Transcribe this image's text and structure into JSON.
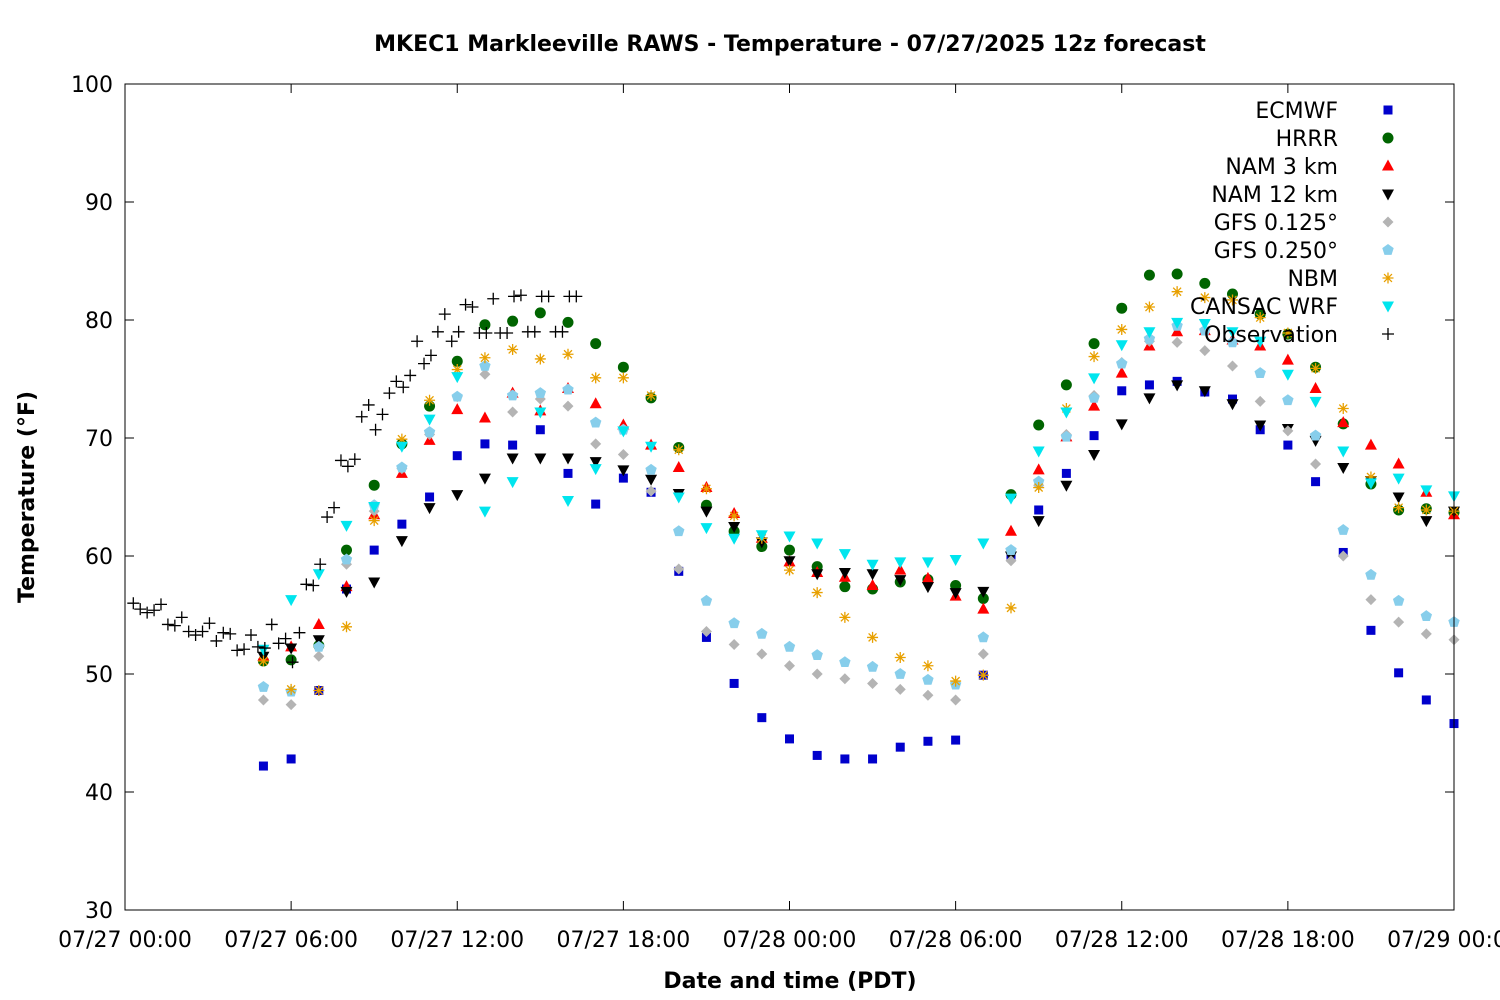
{
  "chart_data": {
    "type": "scatter",
    "title": "MKEC1 Markleeville RAWS - Temperature - 07/27/2025 12z forecast",
    "xlabel": "Date and time (PDT)",
    "ylabel": "Temperature (°F)",
    "xlim": [
      0,
      48
    ],
    "ylim": [
      30,
      100
    ],
    "yticks": [
      30,
      40,
      50,
      60,
      70,
      80,
      90,
      100
    ],
    "xticks": [
      {
        "x": 0,
        "label": "07/27 00:00"
      },
      {
        "x": 6,
        "label": "07/27 06:00"
      },
      {
        "x": 12,
        "label": "07/27 12:00"
      },
      {
        "x": 18,
        "label": "07/27 18:00"
      },
      {
        "x": 24,
        "label": "07/28 00:00"
      },
      {
        "x": 30,
        "label": "07/28 06:00"
      },
      {
        "x": 36,
        "label": "07/28 12:00"
      },
      {
        "x": 42,
        "label": "07/28 18:00"
      },
      {
        "x": 48,
        "label": "07/29 00:00"
      }
    ],
    "grid": false,
    "legend_position": "top-right",
    "series": [
      {
        "name": "ECMWF",
        "marker": "square",
        "color": "#0000cc",
        "x": [
          5,
          6,
          7,
          8,
          9,
          10,
          11,
          12,
          13,
          14,
          15,
          16,
          17,
          18,
          19,
          20,
          21,
          22,
          23,
          24,
          25,
          26,
          27,
          28,
          29,
          30,
          31,
          32,
          33,
          34,
          35,
          36,
          37,
          38,
          39,
          40,
          41,
          42,
          43,
          44,
          45,
          46,
          47,
          48
        ],
        "y": [
          42.2,
          42.8,
          48.6,
          57.2,
          60.5,
          62.7,
          65.0,
          68.5,
          69.5,
          69.4,
          70.7,
          67.0,
          64.4,
          66.6,
          65.4,
          58.7,
          53.1,
          49.2,
          46.3,
          44.5,
          43.1,
          42.8,
          42.8,
          43.8,
          44.3,
          44.4,
          49.9,
          60.0,
          63.9,
          67.0,
          70.2,
          74.0,
          74.5,
          74.8,
          73.9,
          73.3,
          70.7,
          69.4,
          66.3,
          60.3,
          53.7,
          50.1,
          47.8,
          45.8
        ]
      },
      {
        "name": "HRRR",
        "marker": "circle",
        "color": "#006400",
        "x": [
          5,
          6,
          7,
          8,
          9,
          10,
          11,
          12,
          13,
          14,
          15,
          16,
          17,
          18,
          19,
          20,
          21,
          22,
          23,
          24,
          25,
          26,
          27,
          28,
          29,
          30,
          31,
          32,
          33,
          34,
          35,
          36,
          37,
          38,
          39,
          40,
          41,
          42,
          43,
          44,
          45,
          46,
          47,
          48
        ],
        "y": [
          51.1,
          51.2,
          52.4,
          60.5,
          66.0,
          69.5,
          72.7,
          76.5,
          79.6,
          79.9,
          80.6,
          79.8,
          78.0,
          76.0,
          73.4,
          69.2,
          64.3,
          62.1,
          60.8,
          60.5,
          59.1,
          57.4,
          57.2,
          57.8,
          58.0,
          57.5,
          56.4,
          65.2,
          71.1,
          74.5,
          78.0,
          81.0,
          83.8,
          83.9,
          83.1,
          82.2,
          80.5,
          78.8,
          76.0,
          71.2,
          66.1,
          63.9,
          64.0,
          63.7
        ]
      },
      {
        "name": "NAM 3 km",
        "marker": "triangle-up",
        "color": "#ff0000",
        "x": [
          5,
          6,
          7,
          8,
          9,
          10,
          11,
          12,
          13,
          14,
          15,
          16,
          17,
          18,
          19,
          20,
          21,
          22,
          23,
          24,
          25,
          26,
          27,
          28,
          29,
          30,
          31,
          32,
          33,
          34,
          35,
          36,
          37,
          38,
          39,
          40,
          41,
          42,
          43,
          44,
          45,
          46,
          47,
          48
        ],
        "y": [
          51.5,
          52.3,
          54.2,
          57.4,
          63.5,
          67.0,
          69.8,
          72.4,
          71.7,
          73.8,
          72.3,
          74.2,
          72.9,
          71.1,
          69.4,
          67.5,
          65.8,
          63.6,
          61.5,
          59.5,
          58.6,
          58.2,
          57.5,
          58.8,
          58.1,
          56.6,
          55.5,
          62.1,
          67.3,
          70.1,
          72.7,
          75.5,
          77.8,
          79.0,
          79.1,
          78.3,
          77.8,
          76.6,
          74.2,
          71.3,
          69.4,
          67.8,
          65.4,
          63.5
        ]
      },
      {
        "name": "NAM 12 km",
        "marker": "triangle-down",
        "color": "#000000",
        "x": [
          5,
          6,
          7,
          8,
          9,
          10,
          11,
          12,
          13,
          14,
          15,
          16,
          17,
          18,
          19,
          20,
          21,
          22,
          23,
          24,
          25,
          26,
          27,
          28,
          29,
          30,
          31,
          32,
          33,
          34,
          35,
          36,
          37,
          38,
          39,
          40,
          41,
          42,
          43,
          44,
          45,
          46,
          47,
          48
        ],
        "y": [
          51.5,
          52.2,
          52.9,
          57.0,
          57.8,
          61.3,
          64.1,
          65.2,
          66.6,
          68.3,
          68.3,
          68.3,
          68.0,
          67.3,
          66.5,
          65.3,
          63.8,
          62.5,
          61.2,
          59.6,
          58.5,
          58.6,
          58.5,
          58.0,
          57.4,
          56.9,
          57.0,
          60.0,
          63.0,
          66.0,
          68.6,
          71.2,
          73.4,
          74.5,
          74.0,
          72.9,
          71.1,
          70.8,
          69.8,
          67.5,
          66.4,
          65.0,
          63.0,
          63.8
        ]
      },
      {
        "name": "GFS 0.125°",
        "marker": "diamond",
        "color": "#b4b4b4",
        "x": [
          5,
          6,
          7,
          8,
          9,
          10,
          11,
          12,
          13,
          14,
          15,
          16,
          17,
          18,
          19,
          20,
          21,
          22,
          23,
          24,
          25,
          26,
          27,
          28,
          29,
          30,
          31,
          32,
          33,
          34,
          35,
          36,
          37,
          38,
          39,
          40,
          41,
          42,
          43,
          44,
          45,
          46,
          47,
          48
        ],
        "y": [
          47.8,
          47.4,
          51.5,
          59.3,
          63.8,
          67.4,
          70.3,
          73.5,
          75.4,
          72.2,
          73.3,
          72.7,
          69.5,
          68.6,
          65.5,
          58.9,
          53.6,
          52.5,
          51.7,
          50.7,
          50.0,
          49.6,
          49.2,
          48.7,
          48.2,
          47.8,
          51.7,
          59.6,
          66.0,
          70.3,
          73.6,
          76.4,
          78.2,
          78.1,
          77.4,
          76.1,
          73.1,
          70.6,
          67.8,
          60.0,
          56.3,
          54.4,
          53.4,
          52.9
        ]
      },
      {
        "name": "GFS 0.250°",
        "marker": "pentagon",
        "color": "#87ceeb",
        "x": [
          5,
          6,
          7,
          8,
          9,
          10,
          11,
          12,
          13,
          14,
          15,
          16,
          17,
          18,
          19,
          20,
          21,
          22,
          23,
          24,
          25,
          26,
          27,
          28,
          29,
          30,
          31,
          32,
          33,
          34,
          35,
          36,
          37,
          38,
          39,
          40,
          41,
          42,
          43,
          44,
          45,
          46,
          47,
          48
        ],
        "y": [
          48.9,
          48.5,
          52.3,
          59.7,
          64.3,
          67.5,
          70.5,
          73.5,
          76.1,
          73.6,
          73.8,
          74.1,
          71.3,
          70.7,
          67.3,
          62.1,
          56.2,
          54.3,
          53.4,
          52.3,
          51.6,
          51.0,
          50.6,
          50.0,
          49.5,
          49.1,
          53.1,
          60.5,
          66.3,
          70.1,
          73.4,
          76.3,
          78.4,
          79.5,
          79.1,
          78.1,
          75.5,
          73.2,
          70.2,
          62.2,
          58.4,
          56.2,
          54.9,
          54.4
        ]
      },
      {
        "name": "NBM",
        "marker": "asterisk",
        "color": "#e8a000",
        "x": [
          5,
          6,
          7,
          8,
          9,
          10,
          11,
          12,
          13,
          14,
          15,
          16,
          17,
          18,
          19,
          20,
          21,
          22,
          23,
          24,
          25,
          26,
          27,
          28,
          29,
          30,
          31,
          32,
          33,
          34,
          35,
          36,
          37,
          38,
          39,
          40,
          41,
          42,
          43,
          44,
          45,
          46,
          47,
          48
        ],
        "y": [
          51.1,
          48.7,
          48.6,
          54.0,
          63.0,
          69.9,
          73.2,
          75.8,
          76.8,
          77.5,
          76.7,
          77.1,
          75.1,
          75.1,
          73.6,
          69.0,
          65.7,
          63.4,
          61.5,
          58.8,
          56.9,
          54.8,
          53.1,
          51.4,
          50.7,
          49.4,
          49.9,
          55.6,
          65.8,
          72.5,
          76.9,
          79.2,
          81.1,
          82.4,
          81.9,
          81.7,
          80.2,
          78.9,
          75.9,
          72.5,
          66.7,
          64.1,
          63.9,
          63.8
        ]
      },
      {
        "name": "CANSAC WRF",
        "marker": "triangle-down",
        "color": "#00e5ee",
        "x": [
          5,
          6,
          7,
          8,
          9,
          10,
          11,
          12,
          13,
          14,
          15,
          16,
          17,
          18,
          19,
          20,
          21,
          22,
          23,
          24,
          25,
          26,
          27,
          28,
          29,
          30,
          31,
          32,
          33,
          34,
          35,
          36,
          37,
          38,
          39,
          40,
          41,
          42,
          43,
          44,
          45,
          46,
          47,
          48
        ],
        "y": [
          52.1,
          56.3,
          58.5,
          62.6,
          64.2,
          69.3,
          71.6,
          75.2,
          63.8,
          66.3,
          72.2,
          64.7,
          67.4,
          70.6,
          69.3,
          65.0,
          62.4,
          61.5,
          61.8,
          61.7,
          61.1,
          60.2,
          59.3,
          59.5,
          59.5,
          59.7,
          61.1,
          64.9,
          68.9,
          72.2,
          75.1,
          77.9,
          79.0,
          79.8,
          79.7,
          79.0,
          78.2,
          75.4,
          73.1,
          68.9,
          66.2,
          66.6,
          65.6,
          65.1
        ]
      },
      {
        "name": "Observation",
        "marker": "plus",
        "color": "#000000",
        "x": [
          0.3,
          0.55,
          0.8,
          1.05,
          1.3,
          1.55,
          1.8,
          2.05,
          2.3,
          2.55,
          2.8,
          3.05,
          3.3,
          3.55,
          3.8,
          4.05,
          4.3,
          4.55,
          4.8,
          5.05,
          5.3,
          5.55,
          5.8,
          6.05,
          6.3,
          6.55,
          6.8,
          7.05,
          7.3,
          7.55,
          7.8,
          8.05,
          8.3,
          8.55,
          8.8,
          9.05,
          9.3,
          9.55,
          9.8,
          10.05,
          10.3,
          10.55,
          10.8,
          11.05,
          11.3,
          11.55,
          11.8,
          12.05,
          12.3,
          12.55,
          12.8,
          13.05,
          13.3,
          13.55,
          13.8,
          14.05,
          14.3,
          14.55,
          14.8,
          15.05,
          15.3,
          15.55,
          15.8,
          16.05,
          16.3
        ],
        "y": [
          56.0,
          55.5,
          55.2,
          55.4,
          55.9,
          54.2,
          54.1,
          54.8,
          53.6,
          53.3,
          53.6,
          54.3,
          52.8,
          53.5,
          53.4,
          52.0,
          52.1,
          53.3,
          52.3,
          52.2,
          54.2,
          52.6,
          53.0,
          51.0,
          53.5,
          57.6,
          57.5,
          59.3,
          63.3,
          64.1,
          68.1,
          67.6,
          68.2,
          71.8,
          72.8,
          70.7,
          72.0,
          73.8,
          74.8,
          74.3,
          75.3,
          78.2,
          76.3,
          77.0,
          79.0,
          80.5,
          78.2,
          79.0,
          81.3,
          81.1,
          78.9,
          78.9,
          81.8,
          78.9,
          78.9,
          82.0,
          82.1,
          79.0,
          79.0,
          82.0,
          82.0,
          79.0,
          79.0,
          82.0,
          82.0
        ]
      }
    ]
  }
}
